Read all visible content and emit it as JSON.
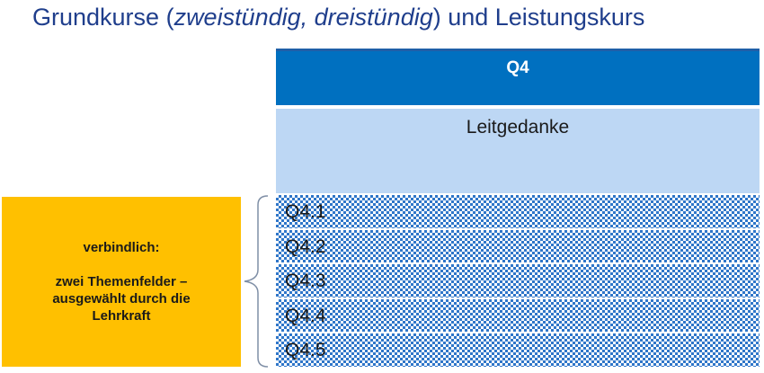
{
  "title": {
    "prefix": "Grundkurse (",
    "italic": "zweistündig, dreistündig",
    "suffix": ") und Leistungskurs"
  },
  "header": {
    "label": "Q4"
  },
  "leitgedanke": {
    "label": "Leitgedanke"
  },
  "themenfelder": [
    {
      "label": "Q4.1"
    },
    {
      "label": "Q4.2"
    },
    {
      "label": "Q4.3"
    },
    {
      "label": "Q4.4"
    },
    {
      "label": "Q4.5"
    }
  ],
  "note": {
    "line1": "verbindlich:",
    "line2": "zwei Themenfelder –",
    "line3": "ausgewählt durch die",
    "line4": "Lehrkraft"
  },
  "colors": {
    "title": "#1f3e8c",
    "header": "#0070c0",
    "leitgedanke": "#bdd7f4",
    "pattern": "#2f76c9",
    "note": "#ffc000"
  }
}
